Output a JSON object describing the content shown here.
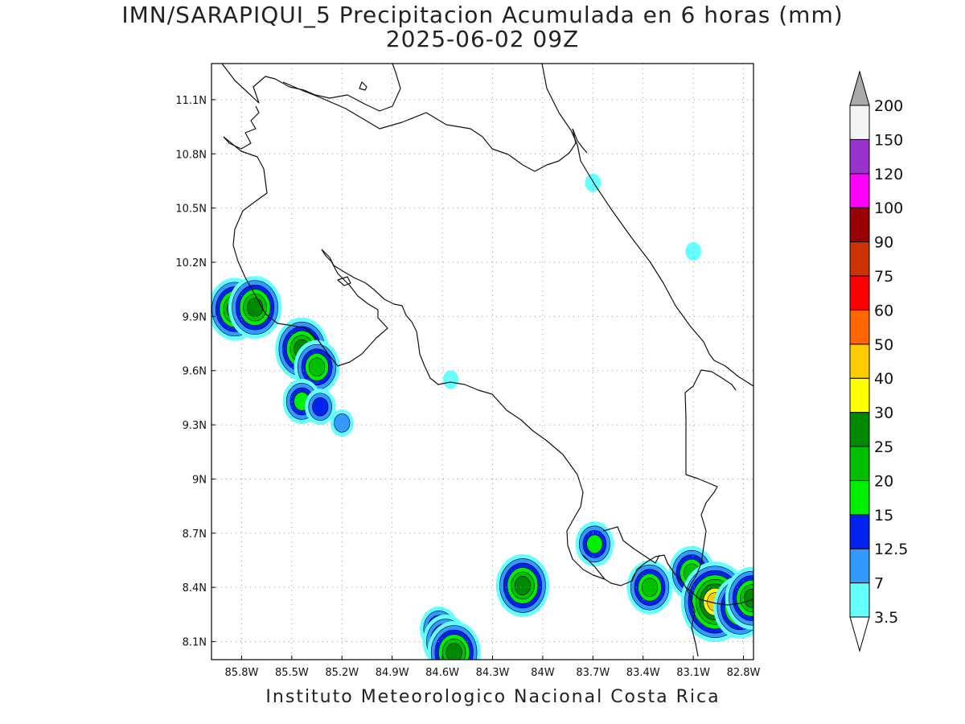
{
  "title": "IMN/SARAPIQUI_5 Precipitacion Acumulada en 6 horas (mm)",
  "subtitle": "2025-06-02 09Z",
  "footer": "Instituto Meteorologico Nacional Costa Rica",
  "lat_ticks": [
    {
      "label": "11.1N",
      "value": 11.1
    },
    {
      "label": "10.8N",
      "value": 10.8
    },
    {
      "label": "10.5N",
      "value": 10.5
    },
    {
      "label": "10.2N",
      "value": 10.2
    },
    {
      "label": "9.9N",
      "value": 9.9
    },
    {
      "label": "9.6N",
      "value": 9.6
    },
    {
      "label": "9.3N",
      "value": 9.3
    },
    {
      "label": "9N",
      "value": 9.0
    },
    {
      "label": "8.7N",
      "value": 8.7
    },
    {
      "label": "8.4N",
      "value": 8.4
    },
    {
      "label": "8.1N",
      "value": 8.1
    }
  ],
  "lon_ticks": [
    {
      "label": "85.8W",
      "value": -85.8
    },
    {
      "label": "85.5W",
      "value": -85.5
    },
    {
      "label": "85.2W",
      "value": -85.2
    },
    {
      "label": "84.9W",
      "value": -84.9
    },
    {
      "label": "84.6W",
      "value": -84.6
    },
    {
      "label": "84.3W",
      "value": -84.3
    },
    {
      "label": "84W",
      "value": -84.0
    },
    {
      "label": "83.7W",
      "value": -83.7
    },
    {
      "label": "83.4W",
      "value": -83.4
    },
    {
      "label": "83.1W",
      "value": -83.1
    },
    {
      "label": "82.8W",
      "value": -82.8
    }
  ],
  "colorbar": {
    "levels": [
      "3.5",
      "7",
      "12.5",
      "15",
      "20",
      "25",
      "30",
      "40",
      "50",
      "60",
      "75",
      "90",
      "100",
      "120",
      "150",
      "200"
    ],
    "colors": [
      "#66ffff",
      "#3399ff",
      "#0022ee",
      "#00ee00",
      "#00c000",
      "#008800",
      "#ffff00",
      "#ffcc00",
      "#ff6600",
      "#ff0000",
      "#cc3300",
      "#990000",
      "#ff00ff",
      "#9933cc",
      "#f4f4f4"
    ],
    "under_color": "#ffffff",
    "over_color": "#aaaaaa"
  },
  "chart_data": {
    "type": "heatmap",
    "title": "IMN/SARAPIQUI_5 Precipitacion Acumulada en 6 horas (mm)",
    "subtitle": "2025-06-02 09Z",
    "units": "mm",
    "lon_range": [
      -85.98,
      -82.74
    ],
    "lat_range": [
      8.0,
      11.3
    ],
    "grid": true,
    "legend_placement": "right",
    "precip_cells": [
      {
        "lon": -85.84,
        "lat": 9.94,
        "value": 25
      },
      {
        "lon": -85.72,
        "lat": 9.95,
        "value": 25
      },
      {
        "lon": -85.44,
        "lat": 9.72,
        "value": 25
      },
      {
        "lon": -85.35,
        "lat": 9.62,
        "value": 20
      },
      {
        "lon": -85.44,
        "lat": 9.43,
        "value": 15
      },
      {
        "lon": -85.33,
        "lat": 9.4,
        "value": 12.5
      },
      {
        "lon": -85.2,
        "lat": 9.31,
        "value": 7
      },
      {
        "lon": -84.12,
        "lat": 8.41,
        "value": 25
      },
      {
        "lon": -84.62,
        "lat": 8.17,
        "value": 15
      },
      {
        "lon": -84.58,
        "lat": 8.1,
        "value": 20
      },
      {
        "lon": -84.53,
        "lat": 8.04,
        "value": 25
      },
      {
        "lon": -83.69,
        "lat": 8.64,
        "value": 15
      },
      {
        "lon": -83.36,
        "lat": 8.4,
        "value": 20
      },
      {
        "lon": -83.11,
        "lat": 8.48,
        "value": 20
      },
      {
        "lon": -82.97,
        "lat": 8.32,
        "value": 40
      },
      {
        "lon": -82.82,
        "lat": 8.29,
        "value": 25
      },
      {
        "lon": -82.75,
        "lat": 8.34,
        "value": 25
      },
      {
        "lon": -84.55,
        "lat": 9.55,
        "value": 3.5
      },
      {
        "lon": -83.7,
        "lat": 10.64,
        "value": 3.5
      },
      {
        "lon": -83.1,
        "lat": 10.26,
        "value": 3.5
      }
    ]
  }
}
